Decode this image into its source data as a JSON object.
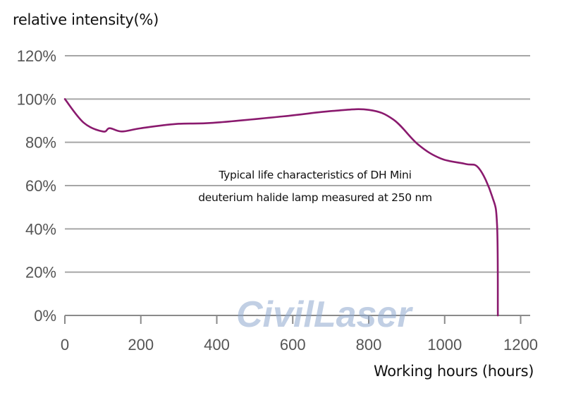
{
  "chart_data": {
    "type": "line",
    "title": "Typical life characteristics of DH Mini deuterium halide lamp measured at 250 nm",
    "annotation_lines": [
      "Typical life characteristics of DH Mini",
      "deuterium halide lamp measured at 250 nm"
    ],
    "xlabel": "Working hours (hours)",
    "ylabel": "relative intensity(%)",
    "xlim": [
      0,
      1200
    ],
    "ylim": [
      0,
      120
    ],
    "x_ticks": [
      "0",
      "200",
      "400",
      "600",
      "800",
      "1000",
      "1200"
    ],
    "y_ticks": [
      "0%",
      "20%",
      "40%",
      "60%",
      "80%",
      "100%",
      "120%"
    ],
    "grid": "horizontal",
    "legend": null,
    "series": [
      {
        "name": "Relative intensity",
        "color": "#8a1a6e",
        "x": [
          0,
          50,
          100,
          118,
          150,
          200,
          295,
          390,
          575,
          705,
          800,
          865,
          930,
          990,
          1055,
          1090,
          1125,
          1138,
          1140
        ],
        "y": [
          100,
          89,
          85,
          86.5,
          85,
          86.5,
          88.5,
          89,
          92,
          94.5,
          95,
          90.5,
          79,
          72.5,
          70,
          68,
          55,
          41.5,
          0
        ]
      }
    ],
    "watermark": "CivilLaser"
  },
  "colors": {
    "curve": "#8a1a6e",
    "grid": "#a6a6a6",
    "tick_text": "#555555",
    "watermark": "#8fa9cf"
  }
}
